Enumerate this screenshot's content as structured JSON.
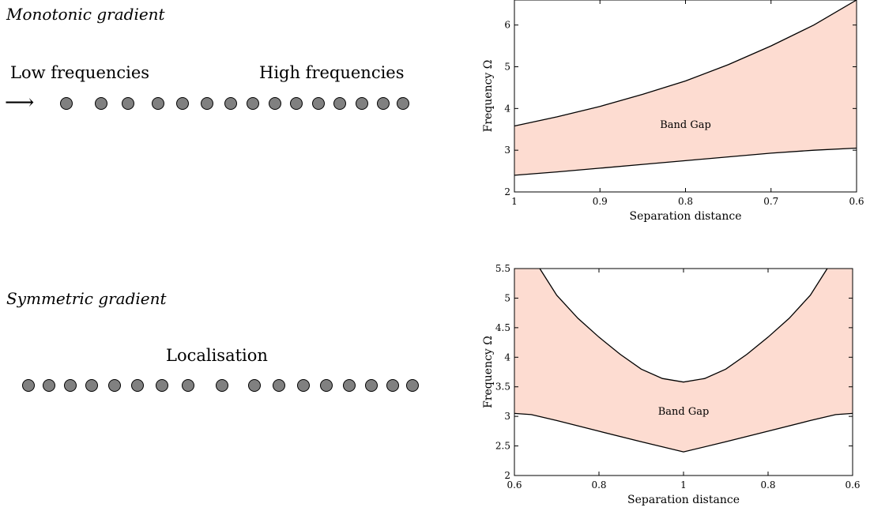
{
  "left": {
    "monotonic": {
      "heading": "Monotonic gradient",
      "low_label": "Low frequencies",
      "high_label": "High frequencies",
      "arrow": "⟶"
    },
    "symmetric": {
      "heading": "Symmetric gradient",
      "localisation_label": "Localisation"
    },
    "resonator_color": "#808080"
  },
  "chart_data": [
    {
      "type": "area",
      "xlabel": "Separation distance",
      "ylabel": "Frequency Ω",
      "annotation": "Band Gap",
      "xlim": [
        1,
        0.6
      ],
      "x_reversed": true,
      "ylim": [
        2,
        6.6
      ],
      "xticks": [
        1,
        0.9,
        0.8,
        0.7,
        0.6
      ],
      "xtick_labels": [
        "1",
        "0.9",
        "0.8",
        "0.7",
        "0.6"
      ],
      "yticks": [
        2,
        3,
        4,
        5,
        6
      ],
      "ytick_labels": [
        "2",
        "3",
        "4",
        "5",
        "6"
      ],
      "fill_color": "#fddcd1",
      "series": [
        {
          "role": "lower",
          "x": [
            1,
            0.95,
            0.9,
            0.85,
            0.8,
            0.75,
            0.7,
            0.65,
            0.6
          ],
          "y": [
            2.4,
            2.48,
            2.57,
            2.66,
            2.75,
            2.84,
            2.93,
            3.0,
            3.05
          ]
        },
        {
          "role": "upper",
          "x": [
            1,
            0.95,
            0.9,
            0.85,
            0.8,
            0.75,
            0.7,
            0.65,
            0.6
          ],
          "y": [
            3.58,
            3.8,
            4.05,
            4.34,
            4.66,
            5.05,
            5.5,
            6.0,
            6.6
          ]
        }
      ]
    },
    {
      "type": "area",
      "xlabel": "Separation distance",
      "ylabel": "Frequency Ω",
      "annotation": "Band Gap",
      "xlim": [
        0,
        2
      ],
      "ylim": [
        2,
        5.5
      ],
      "xticks": [
        0,
        0.5,
        1,
        1.5,
        2
      ],
      "xtick_labels": [
        "0.6",
        "0.8",
        "1",
        "0.8",
        "0.6"
      ],
      "yticks": [
        2,
        2.5,
        3,
        3.5,
        4,
        4.5,
        5,
        5.5
      ],
      "ytick_labels": [
        "2",
        "2.5",
        "3",
        "3.5",
        "4",
        "4.5",
        "5",
        "5.5"
      ],
      "fill_color": "#fddcd1",
      "series": [
        {
          "role": "lower",
          "x": [
            0,
            0.1,
            0.25,
            0.5,
            0.75,
            1,
            1.25,
            1.5,
            1.75,
            1.9,
            2
          ],
          "y": [
            3.05,
            3.03,
            2.93,
            2.75,
            2.57,
            2.4,
            2.57,
            2.75,
            2.93,
            3.03,
            3.05
          ]
        },
        {
          "role": "upper",
          "x": [
            0.15,
            0.25,
            0.375,
            0.5,
            0.625,
            0.75,
            0.875,
            1,
            1.125,
            1.25,
            1.375,
            1.5,
            1.625,
            1.75,
            1.85
          ],
          "y": [
            5.5,
            5.05,
            4.66,
            4.34,
            4.05,
            3.8,
            3.64,
            3.58,
            3.64,
            3.8,
            4.05,
            4.34,
            4.66,
            5.05,
            5.5
          ]
        }
      ]
    }
  ]
}
